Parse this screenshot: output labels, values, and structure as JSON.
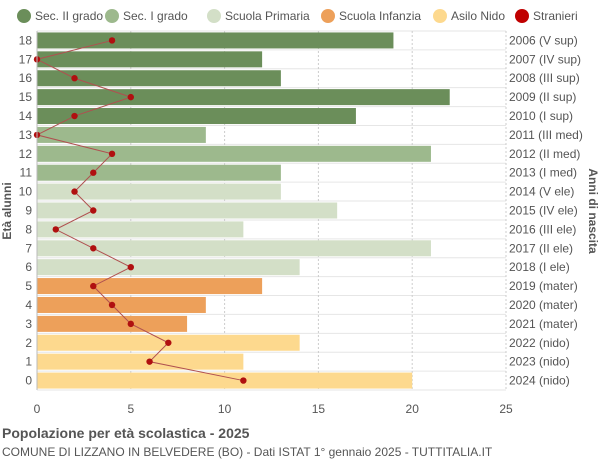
{
  "chart_data": {
    "type": "bar",
    "orientation": "horizontal",
    "title": "Popolazione per età scolastica - 2025",
    "subtitle": "COMUNE DI LIZZANO IN BELVEDERE (BO) - Dati ISTAT 1° gennaio 2025 - TUTTITALIA.IT",
    "ylabel_left": "Età alunni",
    "ylabel_right": "Anni di nascita",
    "xlim": [
      0,
      25
    ],
    "xticks": [
      0,
      5,
      10,
      15,
      20,
      25
    ],
    "grid": true,
    "legend_position": "top",
    "legend": [
      {
        "label": "Sec. II grado",
        "color": "#6b8e5a",
        "shape": "circle"
      },
      {
        "label": "Sec. I grado",
        "color": "#9db98d",
        "shape": "circle"
      },
      {
        "label": "Scuola Primaria",
        "color": "#d3dfc7",
        "shape": "circle"
      },
      {
        "label": "Scuola Infanzia",
        "color": "#eda05a",
        "shape": "circle"
      },
      {
        "label": "Asilo Nido",
        "color": "#fdd98e",
        "shape": "circle"
      },
      {
        "label": "Stranieri",
        "color": "#c00000",
        "shape": "circle"
      }
    ],
    "rows": [
      {
        "age": "18",
        "birth": "2006 (V sup)",
        "value": 19,
        "stranieri": 4,
        "group": 0
      },
      {
        "age": "17",
        "birth": "2007 (IV sup)",
        "value": 12,
        "stranieri": 0,
        "group": 0
      },
      {
        "age": "16",
        "birth": "2008 (III sup)",
        "value": 13,
        "stranieri": 2,
        "group": 0
      },
      {
        "age": "15",
        "birth": "2009 (II sup)",
        "value": 22,
        "stranieri": 5,
        "group": 0
      },
      {
        "age": "14",
        "birth": "2010 (I sup)",
        "value": 17,
        "stranieri": 2,
        "group": 0
      },
      {
        "age": "13",
        "birth": "2011 (III med)",
        "value": 9,
        "stranieri": 0,
        "group": 1
      },
      {
        "age": "12",
        "birth": "2012 (II med)",
        "value": 21,
        "stranieri": 4,
        "group": 1
      },
      {
        "age": "11",
        "birth": "2013 (I med)",
        "value": 13,
        "stranieri": 3,
        "group": 1
      },
      {
        "age": "10",
        "birth": "2014 (V ele)",
        "value": 13,
        "stranieri": 2,
        "group": 2
      },
      {
        "age": "9",
        "birth": "2015 (IV ele)",
        "value": 16,
        "stranieri": 3,
        "group": 2
      },
      {
        "age": "8",
        "birth": "2016 (III ele)",
        "value": 11,
        "stranieri": 1,
        "group": 2
      },
      {
        "age": "7",
        "birth": "2017 (II ele)",
        "value": 21,
        "stranieri": 3,
        "group": 2
      },
      {
        "age": "6",
        "birth": "2018 (I ele)",
        "value": 14,
        "stranieri": 5,
        "group": 2
      },
      {
        "age": "5",
        "birth": "2019 (mater)",
        "value": 12,
        "stranieri": 3,
        "group": 3
      },
      {
        "age": "4",
        "birth": "2020 (mater)",
        "value": 9,
        "stranieri": 4,
        "group": 3
      },
      {
        "age": "3",
        "birth": "2021 (mater)",
        "value": 8,
        "stranieri": 5,
        "group": 3
      },
      {
        "age": "2",
        "birth": "2022 (nido)",
        "value": 14,
        "stranieri": 7,
        "group": 4
      },
      {
        "age": "1",
        "birth": "2023 (nido)",
        "value": 11,
        "stranieri": 6,
        "group": 4
      },
      {
        "age": "0",
        "birth": "2024 (nido)",
        "value": 20,
        "stranieri": 11,
        "group": 4
      }
    ]
  }
}
